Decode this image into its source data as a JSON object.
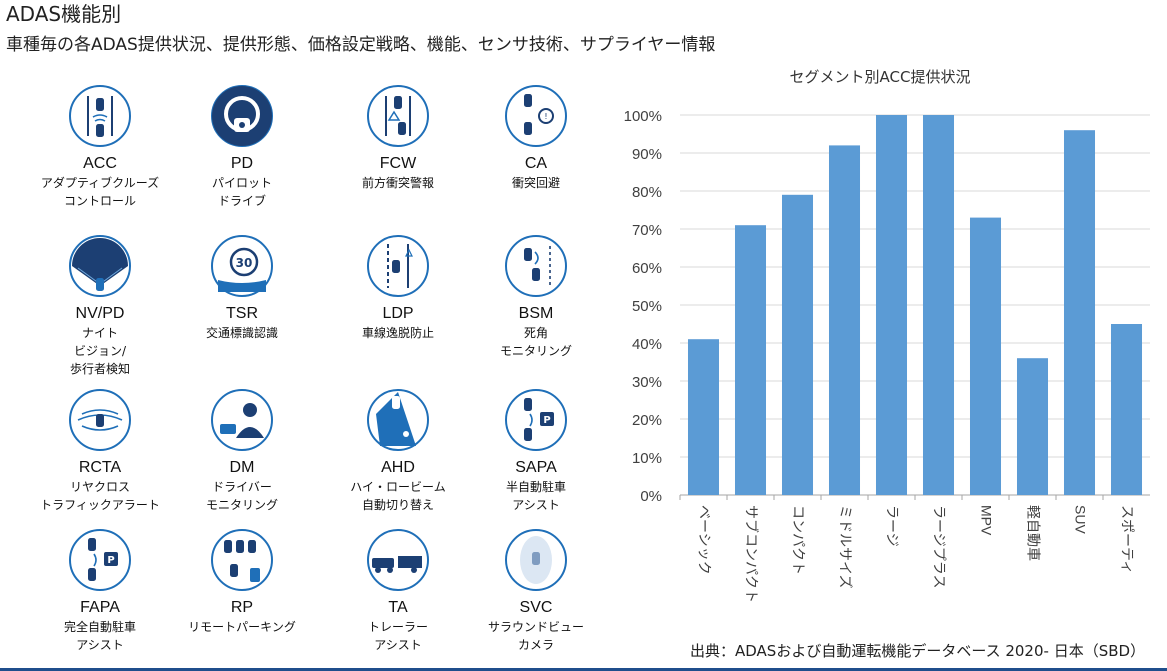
{
  "header": {
    "title": "ADAS機能別",
    "subtitle": "車種毎の各ADAS提供状況、提供形態、価格設定戦略、機能、センサ技術、サプライヤー情報"
  },
  "features": [
    {
      "code": "ACC",
      "desc": "アダプティブクルーズ\nコントロール",
      "icon": "acc-icon"
    },
    {
      "code": "PD",
      "desc": "パイロット\nドライブ",
      "icon": "pilot-drive-icon"
    },
    {
      "code": "FCW",
      "desc": "前方衝突警報",
      "icon": "fcw-icon"
    },
    {
      "code": "CA",
      "desc": "衝突回避",
      "icon": "collision-avoidance-icon"
    },
    {
      "code": "NV/PD",
      "desc": "ナイト\nビジョン/\n歩行者検知",
      "icon": "night-vision-icon"
    },
    {
      "code": "TSR",
      "desc": "交通標識認識",
      "icon": "traffic-sign-icon",
      "sign_value": "30"
    },
    {
      "code": "LDP",
      "desc": "車線逸脱防止",
      "icon": "lane-departure-icon"
    },
    {
      "code": "BSM",
      "desc": "死角\nモニタリング",
      "icon": "blind-spot-icon"
    },
    {
      "code": "RCTA",
      "desc": "リヤクロス\nトラフィックアラート",
      "icon": "rear-cross-traffic-icon"
    },
    {
      "code": "DM",
      "desc": "ドライバー\nモニタリング",
      "icon": "driver-monitoring-icon"
    },
    {
      "code": "AHD",
      "desc": "ハイ・ロービーム\n自動切り替え",
      "icon": "headlight-icon"
    },
    {
      "code": "SAPA",
      "desc": "半自動駐車\nアシスト",
      "icon": "semi-auto-parking-icon",
      "sign_value": "P"
    },
    {
      "code": "FAPA",
      "desc": "完全自動駐車\nアシスト",
      "icon": "full-auto-parking-icon",
      "sign_value": "P"
    },
    {
      "code": "RP",
      "desc": "リモートパーキング",
      "icon": "remote-parking-icon"
    },
    {
      "code": "TA",
      "desc": "トレーラー\nアシスト",
      "icon": "trailer-assist-icon"
    },
    {
      "code": "SVC",
      "desc": "サラウンドビュー\nカメラ",
      "icon": "surround-view-icon"
    }
  ],
  "colors": {
    "icon_blue": "#1f6fb8",
    "icon_dark": "#1c3f73",
    "bar": "#5b9bd5",
    "grid": "#d9d9d9"
  },
  "chart_data": {
    "type": "bar",
    "title": "セグメント別ACC提供状況",
    "categories": [
      "ベーシック",
      "サブコンパクト",
      "コンパクト",
      "ミドルサイズ",
      "ラージ",
      "ラージプラス",
      "MPV",
      "軽自動車",
      "SUV",
      "スポーティ"
    ],
    "values": [
      41,
      71,
      79,
      92,
      100,
      100,
      73,
      36,
      96,
      45
    ],
    "ylim": [
      0,
      100
    ],
    "ytick_labels": [
      "0%",
      "10%",
      "20%",
      "30%",
      "40%",
      "50%",
      "60%",
      "70%",
      "80%",
      "90%",
      "100%"
    ],
    "grid": true,
    "legend": "none"
  },
  "source": "出典：ADASおよび自動運転機能データベース 2020- 日本（SBD）"
}
